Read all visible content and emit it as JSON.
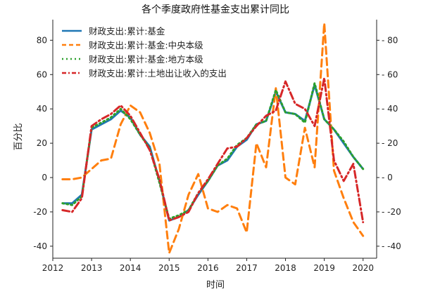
{
  "chart_data": {
    "type": "line",
    "title": "各个季度政府性基金支出累计同比",
    "xlabel": "时间",
    "ylabel": "百分比",
    "xlim": [
      2012.0,
      2020.35
    ],
    "ylim": [
      -47,
      92
    ],
    "x_ticks": [
      2012,
      2013,
      2014,
      2015,
      2016,
      2017,
      2018,
      2019,
      2020
    ],
    "y_ticks": [
      -40,
      -20,
      0,
      20,
      40,
      60,
      80
    ],
    "y_ticks_right": [
      -40,
      -20,
      0,
      20,
      40,
      60,
      80
    ],
    "grid": false,
    "legend_position": "top-left",
    "series": [
      {
        "name": "财政支出:累计:基金",
        "color": "#1f77b4",
        "style": "solid",
        "x": [
          2012.25,
          2012.5,
          2012.75,
          2013.0,
          2013.25,
          2013.5,
          2013.75,
          2014.0,
          2014.25,
          2014.5,
          2014.75,
          2015.0,
          2015.25,
          2015.5,
          2015.75,
          2016.0,
          2016.25,
          2016.5,
          2016.75,
          2017.0,
          2017.25,
          2017.5,
          2017.75,
          2018.0,
          2018.25,
          2018.5,
          2018.75,
          2019.0,
          2019.25,
          2019.5,
          2019.75,
          2020.0
        ],
        "y": [
          -15,
          -15,
          -10,
          28,
          31,
          34,
          39,
          35,
          25,
          18,
          -2,
          -25,
          -23,
          -19,
          -10,
          -2,
          7,
          10,
          18,
          22,
          31,
          33,
          50,
          38,
          37,
          33,
          54,
          34,
          28,
          20,
          12,
          5
        ]
      },
      {
        "name": "财政支出:累计:基金:中央本级",
        "color": "#ff7f0e",
        "style": "dashed",
        "x": [
          2012.25,
          2012.5,
          2012.75,
          2013.0,
          2013.25,
          2013.5,
          2013.75,
          2014.0,
          2014.25,
          2014.5,
          2014.75,
          2015.0,
          2015.25,
          2015.5,
          2015.75,
          2016.0,
          2016.25,
          2016.5,
          2016.75,
          2017.0,
          2017.25,
          2017.5,
          2017.75,
          2018.0,
          2018.25,
          2018.5,
          2018.75,
          2019.0,
          2019.25,
          2019.5,
          2019.75,
          2020.0
        ],
        "y": [
          -1,
          -1,
          0,
          5,
          10,
          11,
          31,
          42,
          38,
          26,
          8,
          -44,
          -30,
          -10,
          2,
          -18,
          -20,
          -16,
          -18,
          -32,
          20,
          6,
          52,
          0,
          -4,
          29,
          6,
          90,
          4,
          -12,
          -26,
          -34
        ]
      },
      {
        "name": "财政支出:累计:基金:地方本级",
        "color": "#2ca02c",
        "style": "dotted",
        "x": [
          2012.25,
          2012.5,
          2012.75,
          2013.0,
          2013.25,
          2013.5,
          2013.75,
          2014.0,
          2014.25,
          2014.5,
          2014.75,
          2015.0,
          2015.25,
          2015.5,
          2015.75,
          2016.0,
          2016.25,
          2016.5,
          2016.75,
          2017.0,
          2017.25,
          2017.5,
          2017.75,
          2018.0,
          2018.25,
          2018.5,
          2018.75,
          2019.0,
          2019.25,
          2019.5,
          2019.75,
          2020.0
        ],
        "y": [
          -15,
          -16,
          -11,
          29,
          32,
          35,
          40,
          34,
          25,
          17,
          -3,
          -24,
          -22,
          -19,
          -9,
          -2,
          7,
          11,
          19,
          23,
          31,
          33,
          51,
          38,
          37,
          32,
          55,
          34,
          28,
          21,
          12,
          5
        ]
      },
      {
        "name": "财政支出:累计:土地出让收入的支出",
        "color": "#d62728",
        "style": "dashdot",
        "x": [
          2012.25,
          2012.5,
          2012.75,
          2013.0,
          2013.25,
          2013.5,
          2013.75,
          2014.0,
          2014.25,
          2014.5,
          2014.75,
          2015.0,
          2015.25,
          2015.5,
          2015.75,
          2016.0,
          2016.25,
          2016.5,
          2016.75,
          2017.0,
          2017.25,
          2017.5,
          2017.75,
          2018.0,
          2018.25,
          2018.5,
          2018.75,
          2019.0,
          2019.25,
          2019.5,
          2019.75,
          2020.0
        ],
        "y": [
          -19,
          -20,
          -12,
          30,
          34,
          37,
          42,
          36,
          26,
          16,
          -1,
          -25,
          -23,
          -20,
          -9,
          -1,
          8,
          17,
          18,
          23,
          30,
          36,
          39,
          56,
          43,
          40,
          30,
          58,
          10,
          -2,
          8,
          -26
        ]
      }
    ]
  }
}
